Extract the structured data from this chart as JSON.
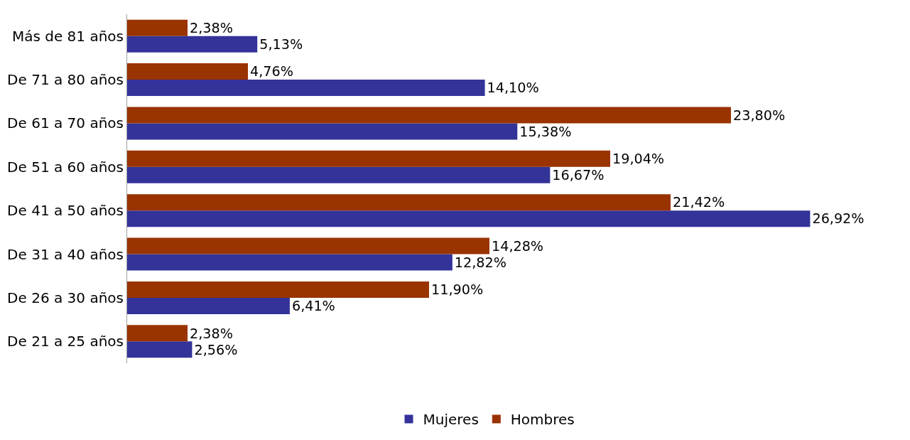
{
  "chart_data": {
    "type": "bar",
    "orientation": "horizontal",
    "legend": "bottom",
    "categories": [
      "Más de 81 años",
      "De 71 a 80 años",
      "De 61 a 70 años",
      "De 51 a 60 años",
      "De 41 a 50 años",
      "De 31 a 40 años",
      "De 26 a 30 años",
      "De 21 a 25 años"
    ],
    "series": [
      {
        "name": "Mujeres",
        "color": "#333399",
        "values": [
          5.13,
          14.1,
          15.38,
          16.67,
          26.92,
          12.82,
          6.41,
          2.56
        ],
        "value_labels": [
          "5,13%",
          "14,10%",
          "15,38%",
          "16,67%",
          "26,92%",
          "12,82%",
          "6,41%",
          "2,56%"
        ]
      },
      {
        "name": "Hombres",
        "color": "#993300",
        "values": [
          2.38,
          4.76,
          23.8,
          19.04,
          21.42,
          14.28,
          11.9,
          2.38
        ],
        "value_labels": [
          "2,38%",
          "4,76%",
          "23,80%",
          "19,04%",
          "21,42%",
          "14,28%",
          "11,90%",
          "2,38%"
        ]
      }
    ]
  }
}
